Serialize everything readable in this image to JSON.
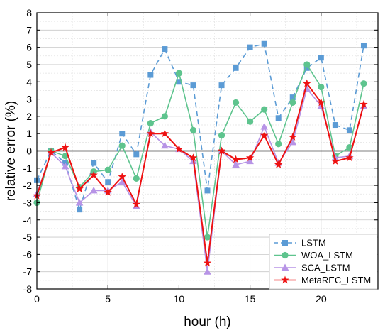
{
  "chart_data": {
    "type": "line",
    "xlabel": "hour (h)",
    "ylabel": "relative error (%)",
    "xlim": [
      0,
      24
    ],
    "ylim": [
      -8,
      8
    ],
    "x_ticks": [
      0,
      5,
      10,
      15,
      20
    ],
    "y_ticks": [
      -8,
      -7,
      -6,
      -5,
      -4,
      -3,
      -2,
      -1,
      0,
      1,
      2,
      3,
      4,
      5,
      6,
      7,
      8
    ],
    "grid": true,
    "legend_position": "bottom-right",
    "x": [
      0,
      1,
      2,
      3,
      4,
      5,
      6,
      7,
      8,
      9,
      10,
      11,
      12,
      13,
      14,
      15,
      16,
      17,
      18,
      19,
      20,
      21,
      22,
      23
    ],
    "series": [
      {
        "name": "LSTM",
        "color": "#5b9bd5",
        "marker": "square",
        "line_style": "dashed",
        "values": [
          -1.7,
          0.0,
          -0.7,
          -3.4,
          -0.7,
          -1.8,
          1.0,
          -0.2,
          4.4,
          5.9,
          4.0,
          3.8,
          -2.3,
          3.8,
          4.8,
          6.0,
          6.2,
          1.9,
          3.1,
          4.8,
          5.4,
          1.5,
          1.2,
          6.1
        ]
      },
      {
        "name": "WOA_LSTM",
        "color": "#5ec48e",
        "marker": "circle",
        "line_style": "solid",
        "values": [
          -3.0,
          0.0,
          -0.3,
          -2.1,
          -1.2,
          -1.1,
          0.3,
          -1.6,
          1.6,
          2.0,
          4.5,
          1.2,
          -5.0,
          0.9,
          2.8,
          1.7,
          2.4,
          0.4,
          2.8,
          5.0,
          3.7,
          -0.3,
          0.2,
          3.9
        ]
      },
      {
        "name": "SCA_LSTM",
        "color": "#b794e6",
        "marker": "triangle",
        "line_style": "solid",
        "values": [
          -2.5,
          -0.1,
          -0.9,
          -3.0,
          -2.3,
          -2.3,
          -1.8,
          -3.2,
          1.1,
          0.3,
          0.1,
          -0.6,
          -7.0,
          0.0,
          -0.8,
          -0.6,
          1.4,
          -0.7,
          0.5,
          3.6,
          2.6,
          -0.4,
          -0.3,
          2.6
        ]
      },
      {
        "name": "MetaREC_LSTM",
        "color": "#ee1111",
        "marker": "star",
        "line_style": "solid",
        "values": [
          -2.6,
          -0.1,
          0.2,
          -2.2,
          -1.4,
          -2.4,
          -1.5,
          -3.1,
          1.0,
          1.0,
          0.1,
          -0.4,
          -6.5,
          0.0,
          -0.5,
          -0.4,
          0.9,
          -0.8,
          0.8,
          3.9,
          2.8,
          -0.6,
          -0.4,
          2.7
        ]
      }
    ]
  }
}
